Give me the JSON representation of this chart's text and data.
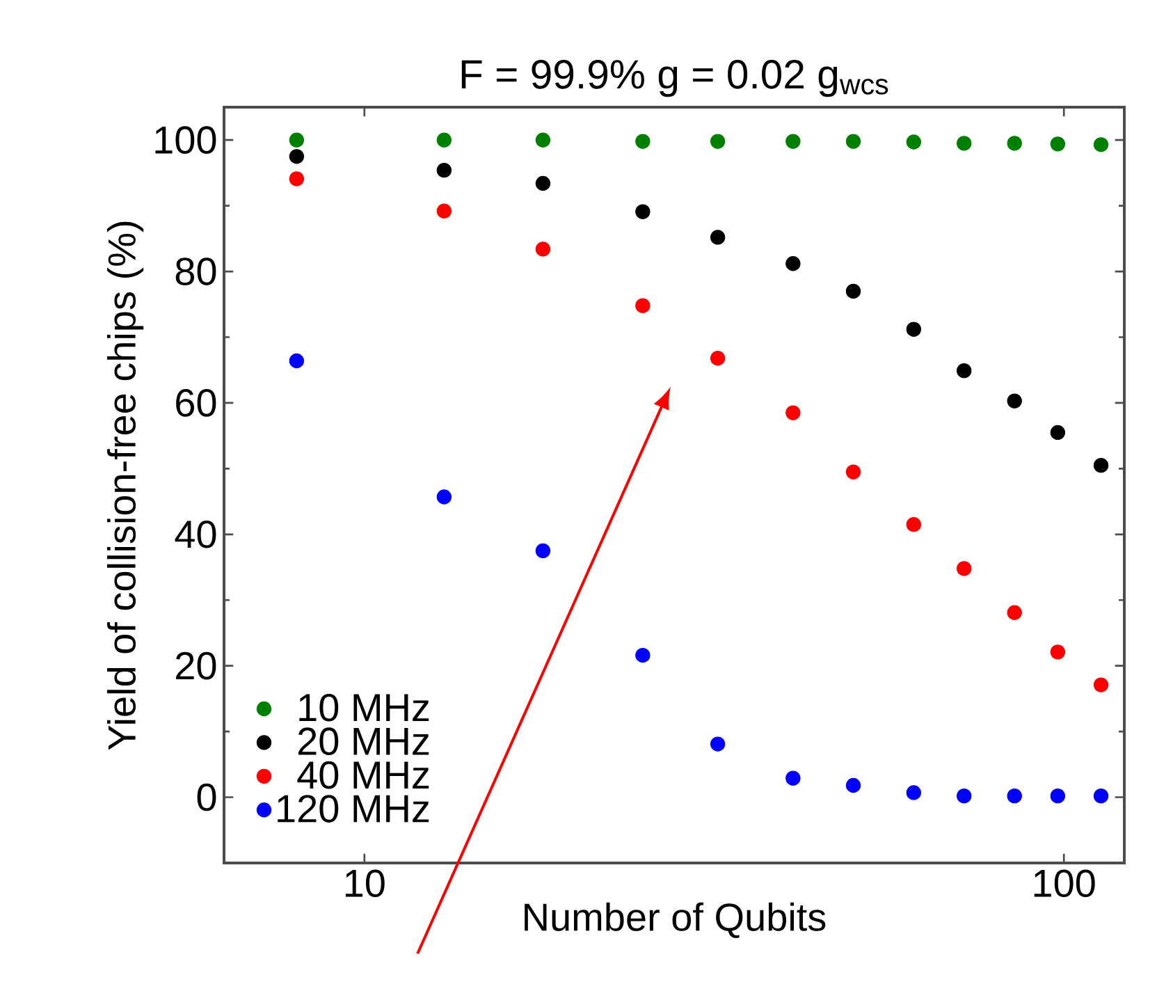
{
  "chart_data": {
    "type": "scatter",
    "title": "F = 99.9%    g = 0.02 g$_{wcs}$",
    "xlabel": "Number of Qubits",
    "ylabel": "Yield of collision-free chips (%)",
    "x": [
      8,
      13,
      18,
      25,
      32,
      41,
      50,
      61,
      72,
      85,
      98,
      113
    ],
    "log": "x",
    "xlim": [
      6.3,
      122
    ],
    "xticks": [
      10,
      100
    ],
    "ylim": [
      -10,
      105
    ],
    "yticks": [
      0,
      20,
      40,
      60,
      80,
      100
    ],
    "marker": "circle",
    "legend": "bottom left",
    "series": [
      {
        "name": "10  MHz",
        "color": "#008000",
        "values": [
          100,
          100,
          100,
          99.8,
          99.8,
          99.8,
          99.8,
          99.7,
          99.5,
          99.5,
          99.4,
          99.3
        ]
      },
      {
        "name": "20  MHz",
        "color": "#000000",
        "values": [
          97.5,
          95.4,
          93.4,
          89.1,
          85.2,
          81.2,
          77.0,
          71.2,
          64.9,
          60.3,
          55.5,
          50.5
        ]
      },
      {
        "name": "40  MHz",
        "color": "#ff0000",
        "values": [
          94.1,
          89.2,
          83.4,
          74.8,
          66.8,
          58.5,
          49.5,
          41.5,
          34.8,
          28.1,
          22.1,
          17.1
        ]
      },
      {
        "name": "120  MHz",
        "color": "#0000ff",
        "values": [
          66.4,
          45.7,
          37.5,
          21.6,
          8.1,
          2.9,
          1.8,
          0.7,
          0.2,
          0.2,
          0.2,
          0.2
        ]
      }
    ]
  }
}
